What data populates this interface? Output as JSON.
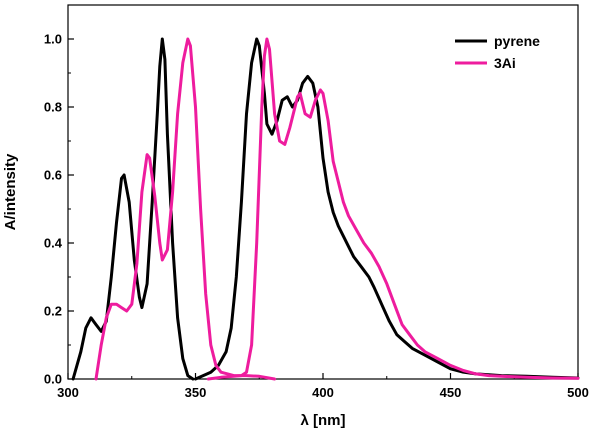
{
  "chart_data": {
    "type": "line",
    "xlabel": "λ [nm]",
    "ylabel": "A/intensity",
    "xlim": [
      300,
      500
    ],
    "ylim": [
      0.0,
      1.1
    ],
    "xticks": [
      300,
      350,
      400,
      450,
      500
    ],
    "yticks": [
      0.0,
      0.2,
      0.4,
      0.6,
      0.8,
      1.0
    ],
    "yticklabels": [
      "0.0",
      "0.2",
      "0.4",
      "0.6",
      "0.8",
      "1.0"
    ],
    "grid": false,
    "legend_position": "top-right",
    "series": [
      {
        "name": "pyrene",
        "color": "#000000",
        "segments": [
          [
            [
              302,
              0.0
            ],
            [
              305,
              0.08
            ],
            [
              307,
              0.15
            ],
            [
              309,
              0.18
            ],
            [
              311,
              0.16
            ],
            [
              313,
              0.14
            ],
            [
              315,
              0.17
            ],
            [
              317,
              0.3
            ],
            [
              319,
              0.46
            ],
            [
              321,
              0.59
            ],
            [
              322,
              0.6
            ],
            [
              324,
              0.52
            ],
            [
              326,
              0.35
            ],
            [
              328,
              0.24
            ],
            [
              329,
              0.21
            ],
            [
              331,
              0.28
            ],
            [
              333,
              0.52
            ],
            [
              335,
              0.78
            ],
            [
              336,
              0.92
            ],
            [
              337,
              1.0
            ],
            [
              338,
              0.94
            ],
            [
              339,
              0.72
            ],
            [
              341,
              0.4
            ],
            [
              343,
              0.18
            ],
            [
              345,
              0.06
            ],
            [
              347,
              0.01
            ],
            [
              349,
              0.0
            ]
          ],
          [
            [
              350,
              0.0
            ],
            [
              353,
              0.01
            ],
            [
              356,
              0.02
            ],
            [
              359,
              0.04
            ],
            [
              362,
              0.08
            ],
            [
              364,
              0.15
            ],
            [
              366,
              0.3
            ],
            [
              368,
              0.52
            ],
            [
              370,
              0.78
            ],
            [
              372,
              0.93
            ],
            [
              374,
              1.0
            ],
            [
              375,
              0.98
            ],
            [
              377,
              0.84
            ],
            [
              378,
              0.75
            ],
            [
              380,
              0.72
            ],
            [
              382,
              0.76
            ],
            [
              384,
              0.82
            ],
            [
              386,
              0.83
            ],
            [
              388,
              0.8
            ],
            [
              390,
              0.82
            ],
            [
              392,
              0.87
            ],
            [
              394,
              0.89
            ],
            [
              396,
              0.87
            ],
            [
              398,
              0.8
            ],
            [
              400,
              0.65
            ],
            [
              402,
              0.55
            ],
            [
              404,
              0.49
            ],
            [
              406,
              0.45
            ],
            [
              408,
              0.42
            ],
            [
              410,
              0.39
            ],
            [
              412,
              0.36
            ],
            [
              415,
              0.33
            ],
            [
              418,
              0.3
            ],
            [
              420,
              0.27
            ],
            [
              423,
              0.22
            ],
            [
              426,
              0.17
            ],
            [
              429,
              0.13
            ],
            [
              432,
              0.11
            ],
            [
              435,
              0.09
            ],
            [
              440,
              0.07
            ],
            [
              445,
              0.05
            ],
            [
              450,
              0.03
            ],
            [
              455,
              0.02
            ],
            [
              460,
              0.015
            ],
            [
              470,
              0.01
            ],
            [
              480,
              0.008
            ],
            [
              490,
              0.005
            ],
            [
              500,
              0.003
            ]
          ]
        ]
      },
      {
        "name": "3Ai",
        "color": "#ee1c9e",
        "segments": [
          [
            [
              311,
              0.0
            ],
            [
              313,
              0.1
            ],
            [
              315,
              0.18
            ],
            [
              317,
              0.22
            ],
            [
              319,
              0.22
            ],
            [
              321,
              0.21
            ],
            [
              323,
              0.2
            ],
            [
              325,
              0.22
            ],
            [
              327,
              0.34
            ],
            [
              329,
              0.55
            ],
            [
              331,
              0.66
            ],
            [
              332,
              0.65
            ],
            [
              334,
              0.54
            ],
            [
              336,
              0.4
            ],
            [
              337,
              0.35
            ],
            [
              339,
              0.38
            ],
            [
              341,
              0.55
            ],
            [
              343,
              0.78
            ],
            [
              345,
              0.93
            ],
            [
              347,
              1.0
            ],
            [
              348,
              0.98
            ],
            [
              350,
              0.8
            ],
            [
              352,
              0.5
            ],
            [
              354,
              0.25
            ],
            [
              356,
              0.1
            ],
            [
              358,
              0.04
            ],
            [
              360,
              0.02
            ],
            [
              365,
              0.01
            ],
            [
              370,
              0.01
            ],
            [
              375,
              0.008
            ],
            [
              381,
              0.0
            ]
          ],
          [
            [
              355,
              0.0
            ],
            [
              360,
              0.005
            ],
            [
              365,
              0.008
            ],
            [
              368,
              0.01
            ],
            [
              370,
              0.02
            ],
            [
              372,
              0.1
            ],
            [
              374,
              0.4
            ],
            [
              376,
              0.8
            ],
            [
              377,
              0.95
            ],
            [
              378,
              1.0
            ],
            [
              379,
              0.97
            ],
            [
              381,
              0.78
            ],
            [
              383,
              0.7
            ],
            [
              385,
              0.69
            ],
            [
              387,
              0.74
            ],
            [
              389,
              0.8
            ],
            [
              390,
              0.83
            ],
            [
              391,
              0.84
            ],
            [
              393,
              0.78
            ],
            [
              395,
              0.77
            ],
            [
              397,
              0.82
            ],
            [
              399,
              0.85
            ],
            [
              400,
              0.84
            ],
            [
              402,
              0.76
            ],
            [
              404,
              0.64
            ],
            [
              406,
              0.58
            ],
            [
              408,
              0.52
            ],
            [
              410,
              0.48
            ],
            [
              413,
              0.44
            ],
            [
              416,
              0.4
            ],
            [
              419,
              0.37
            ],
            [
              422,
              0.33
            ],
            [
              425,
              0.28
            ],
            [
              428,
              0.22
            ],
            [
              431,
              0.16
            ],
            [
              434,
              0.13
            ],
            [
              437,
              0.1
            ],
            [
              440,
              0.08
            ],
            [
              445,
              0.06
            ],
            [
              450,
              0.04
            ],
            [
              455,
              0.025
            ],
            [
              460,
              0.015
            ],
            [
              465,
              0.01
            ],
            [
              470,
              0.008
            ],
            [
              480,
              0.005
            ],
            [
              490,
              0.003
            ],
            [
              500,
              0.002
            ]
          ]
        ]
      }
    ]
  }
}
